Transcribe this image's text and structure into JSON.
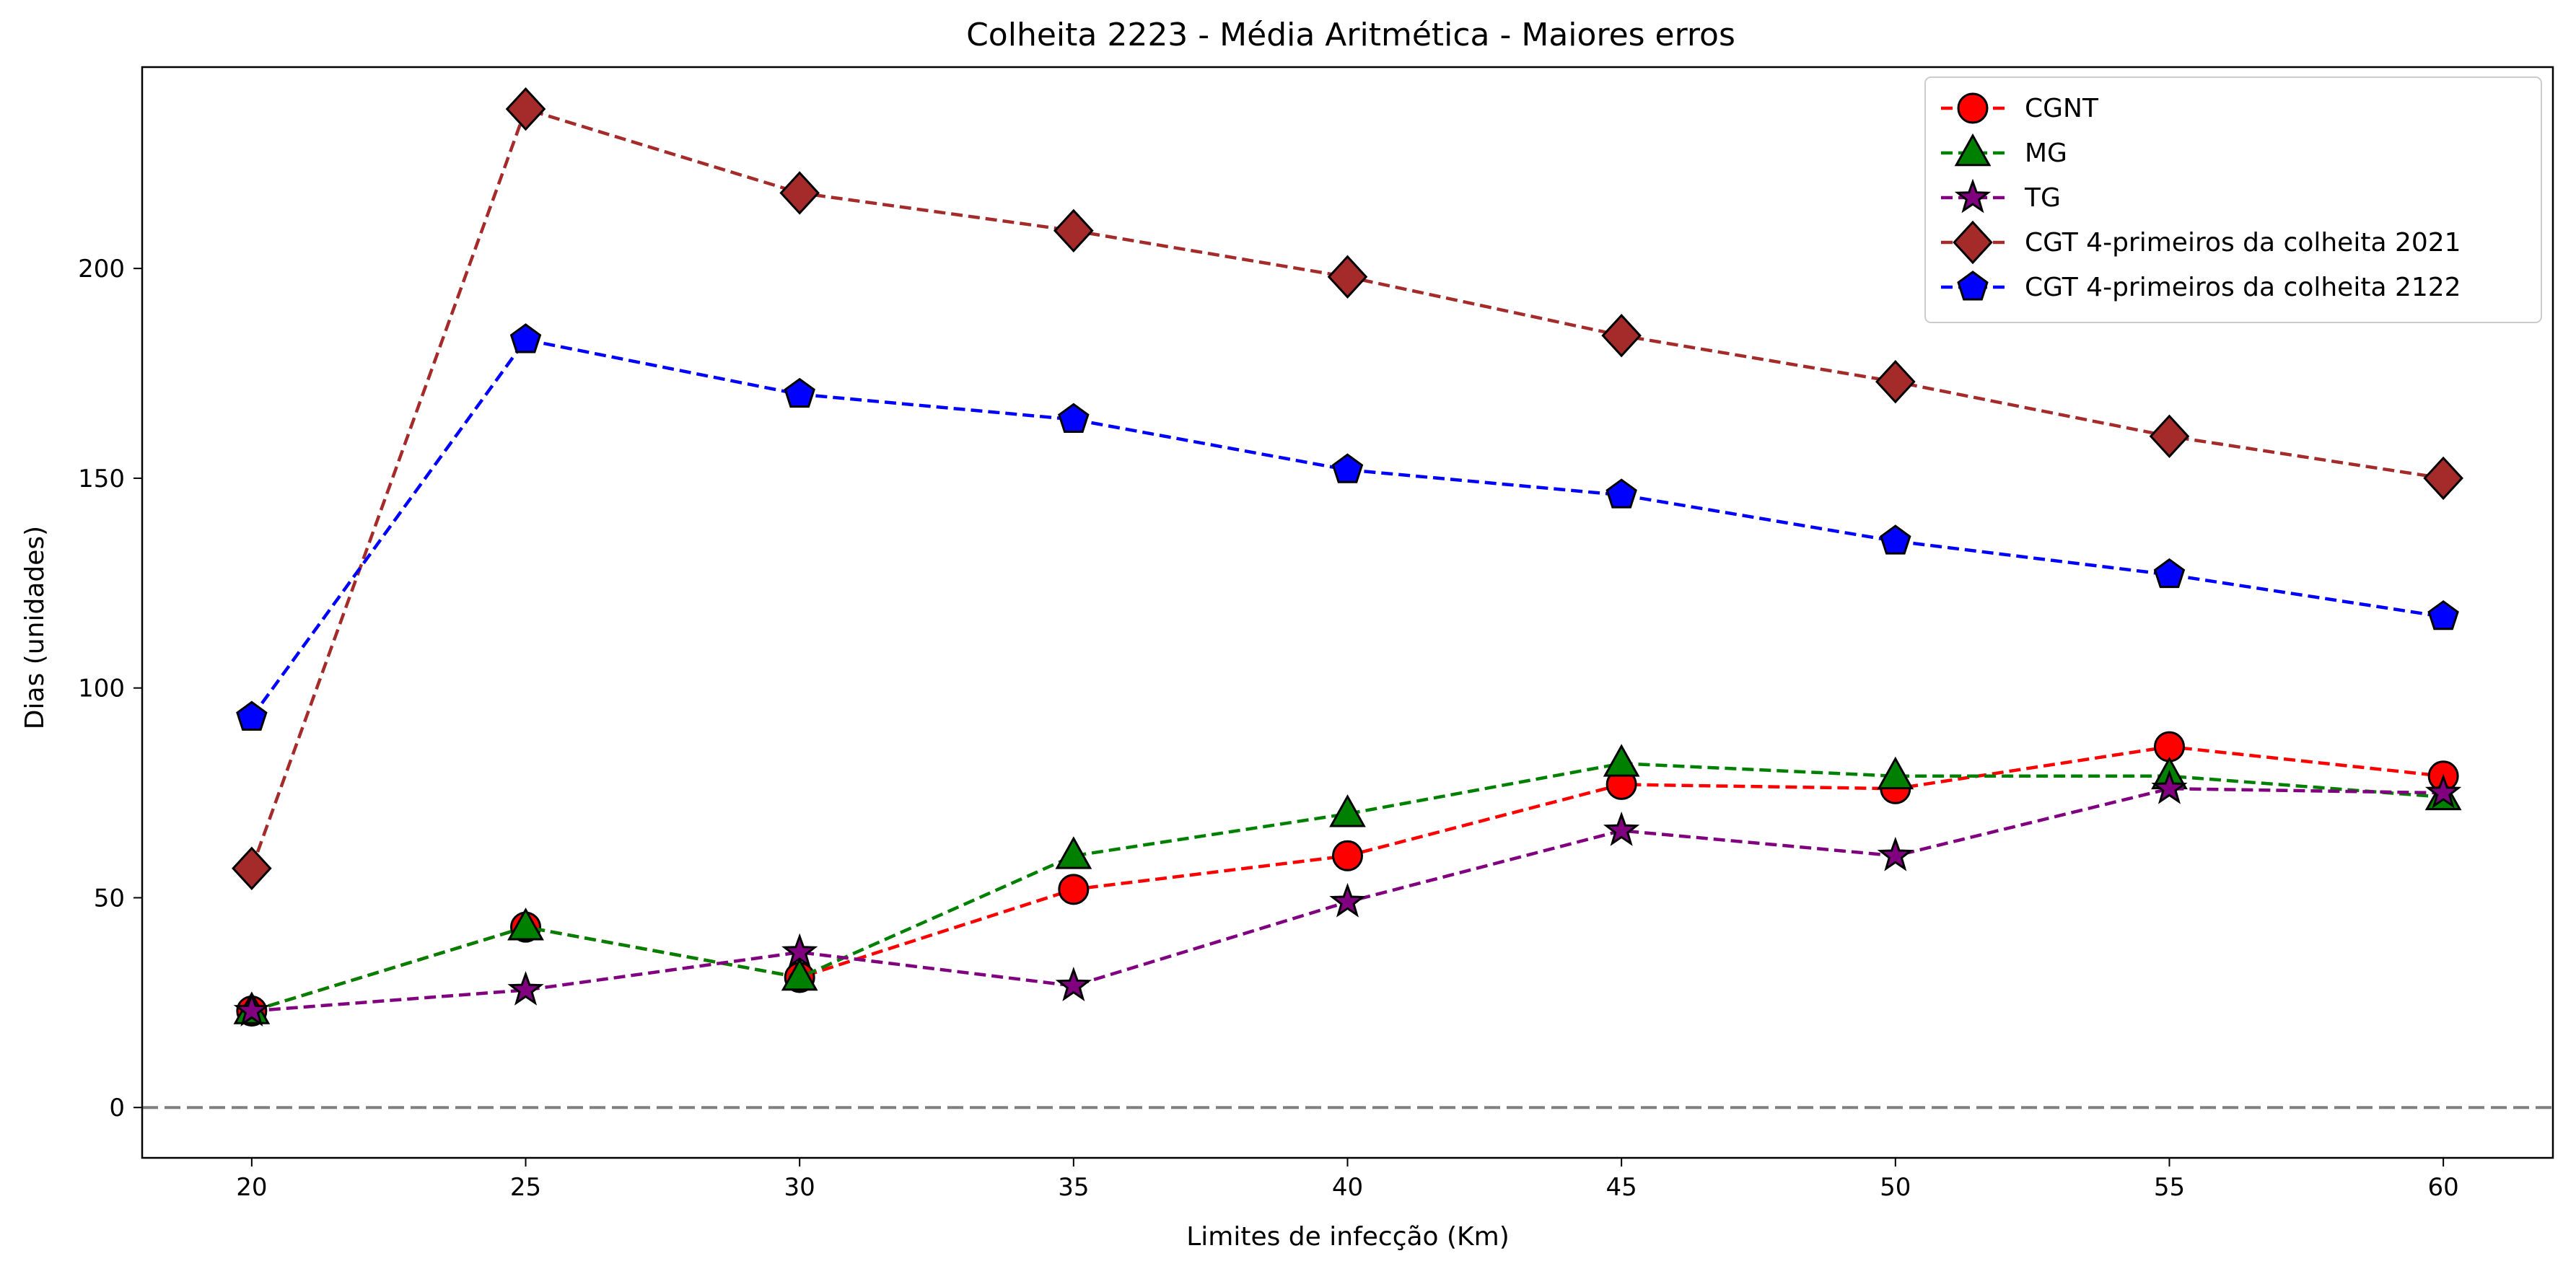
{
  "chart_data": {
    "type": "line",
    "title": "Colheita 2223 - Média Aritmética - Maiores erros",
    "xlabel": "Limites de infecção (Km)",
    "ylabel": "Dias (unidades)",
    "x": [
      20,
      25,
      30,
      35,
      40,
      45,
      50,
      55,
      60
    ],
    "xticks": [
      "20",
      "25",
      "30",
      "35",
      "40",
      "45",
      "50",
      "55",
      "60"
    ],
    "yticks": [
      "0",
      "50",
      "100",
      "150",
      "200"
    ],
    "xlim": [
      18,
      62
    ],
    "ylim": [
      -12,
      248
    ],
    "legend_position": "top-right",
    "reference_line": {
      "y": 0,
      "style": "dashed",
      "color": "#808080"
    },
    "series": [
      {
        "name": "CGNT",
        "marker": "circle",
        "color": "#ff0000",
        "values": [
          23,
          43,
          31,
          52,
          60,
          77,
          76,
          86,
          79
        ]
      },
      {
        "name": "MG",
        "marker": "triangle",
        "color": "#008000",
        "values": [
          23,
          43,
          31,
          60,
          70,
          82,
          79,
          79,
          74
        ]
      },
      {
        "name": "TG",
        "marker": "star",
        "color": "#800080",
        "values": [
          23,
          28,
          37,
          29,
          49,
          66,
          60,
          76,
          75
        ]
      },
      {
        "name": "CGT 4-primeiros da colheita 2021",
        "marker": "diamond",
        "color": "#a52a2a",
        "values": [
          57,
          238,
          218,
          209,
          198,
          184,
          173,
          160,
          150
        ]
      },
      {
        "name": "CGT 4-primeiros da colheita 2122",
        "marker": "pentagon",
        "color": "#0000ff",
        "values": [
          93,
          183,
          170,
          164,
          152,
          146,
          135,
          127,
          117
        ]
      }
    ]
  }
}
